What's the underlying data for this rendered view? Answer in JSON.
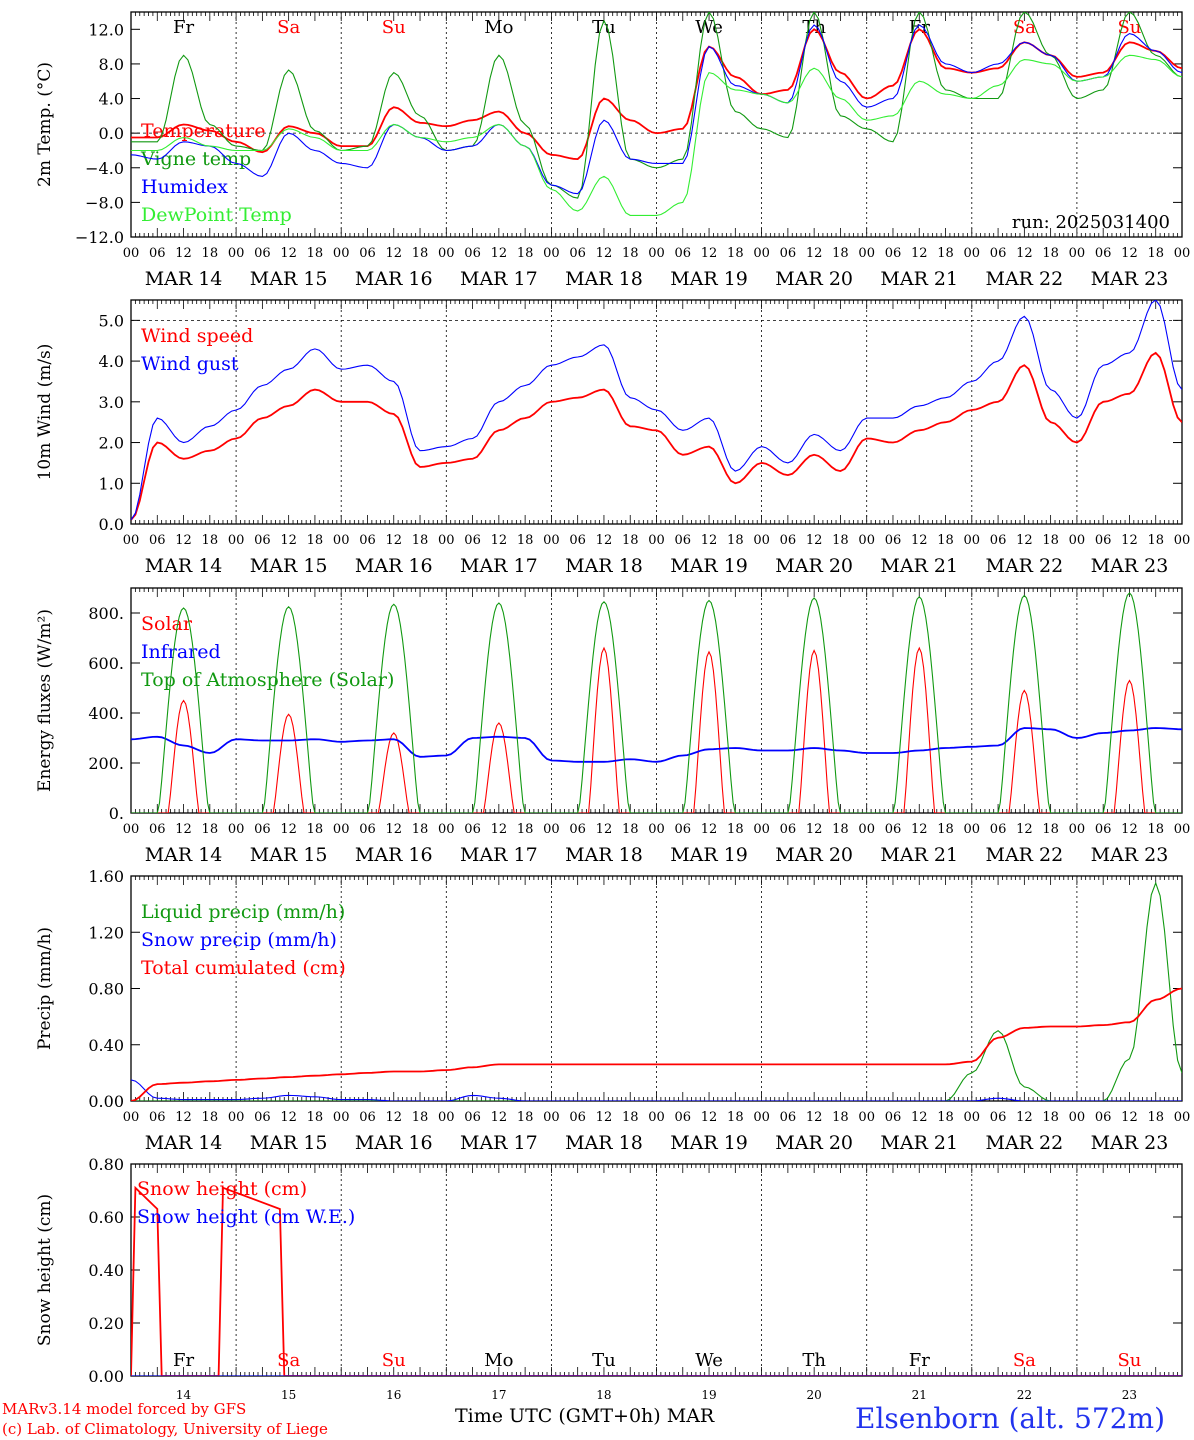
{
  "colors": {
    "red": "#ff0000",
    "blue": "#0000ff",
    "dark_green": "#119911",
    "light_green": "#33ee33",
    "axis": "#000000",
    "weekend_day": "#ff0000",
    "weekday": "#000000"
  },
  "time_axis": {
    "hour_ticks": [
      "00",
      "06",
      "12",
      "18"
    ],
    "end_tick": "00",
    "dates": [
      "MAR 14",
      "MAR 15",
      "MAR 16",
      "MAR 17",
      "MAR 18",
      "MAR 19",
      "MAR 20",
      "MAR 21",
      "MAR 22",
      "MAR 23"
    ],
    "day_names": [
      "Fr",
      "Sa",
      "Su",
      "Mo",
      "Tu",
      "We",
      "Th",
      "Fr",
      "Sa",
      "Su"
    ],
    "day_numbers": [
      "14",
      "15",
      "16",
      "17",
      "18",
      "19",
      "20",
      "21",
      "22",
      "23"
    ],
    "weekend": [
      false,
      true,
      true,
      false,
      false,
      false,
      false,
      false,
      true,
      true
    ]
  },
  "chart_data": [
    {
      "type": "line",
      "ylabel": "2m Temp. (°C)",
      "ylim": [
        -12,
        14
      ],
      "yticks": [
        "12.0",
        "8.0",
        "4.0",
        "0.0",
        "−4.0",
        "−8.0",
        "−12.0"
      ],
      "ytick_values": [
        12,
        8,
        4,
        0,
        -4,
        -8,
        -12
      ],
      "reference_line": 0,
      "annotation": "run: 2025031400",
      "x_hours": [
        0,
        6,
        12,
        18,
        24,
        30,
        36,
        42,
        48,
        54,
        60,
        66,
        72,
        78,
        84,
        90,
        96,
        102,
        108,
        114,
        120,
        126,
        132,
        138,
        144,
        150,
        156,
        162,
        168,
        174,
        180,
        186,
        192,
        198,
        204,
        210,
        216,
        222,
        228,
        234,
        240
      ],
      "series": [
        {
          "name": "Temperature",
          "color_key": "red",
          "values": [
            -0.5,
            -0.5,
            1.0,
            0.3,
            -1.0,
            -2.2,
            0.8,
            0.0,
            -1.5,
            -1.5,
            3.0,
            1.2,
            0.8,
            1.5,
            2.5,
            0.0,
            -2.5,
            -3.0,
            4.0,
            1.5,
            0.0,
            0.5,
            10.0,
            6.5,
            4.5,
            5.0,
            12.0,
            7.0,
            4.0,
            5.5,
            12.0,
            7.5,
            7.0,
            7.5,
            10.5,
            9.0,
            6.5,
            7.0,
            10.5,
            9.5,
            7.5
          ]
        },
        {
          "name": "Vigne temp",
          "color_key": "dark_green",
          "values": [
            -1.0,
            -1.0,
            9.0,
            1.0,
            -1.5,
            -2.0,
            7.3,
            0.3,
            -2.0,
            -1.5,
            7.0,
            2.0,
            -2.0,
            -1.5,
            9.0,
            1.0,
            -6.0,
            -7.5,
            13.0,
            -3.0,
            -4.0,
            -3.0,
            14.0,
            2.5,
            0.5,
            -0.5,
            14.0,
            2.0,
            0.5,
            -1.0,
            14.0,
            5.0,
            4.0,
            4.0,
            14.0,
            9.0,
            4.0,
            5.0,
            14.0,
            9.0,
            6.5
          ]
        },
        {
          "name": "Humidex",
          "color_key": "blue",
          "values": [
            -2.5,
            -3.0,
            -1.0,
            -1.5,
            -3.5,
            -5.0,
            0.0,
            -2.0,
            -3.5,
            -4.0,
            1.0,
            -0.5,
            -2.0,
            -1.5,
            1.0,
            -1.5,
            -6.0,
            -7.0,
            1.5,
            -3.0,
            -3.5,
            -3.5,
            10.0,
            5.5,
            4.5,
            3.5,
            12.5,
            6.0,
            3.0,
            4.0,
            12.5,
            8.0,
            7.0,
            8.0,
            10.5,
            9.0,
            6.0,
            6.5,
            11.5,
            9.5,
            7.0
          ]
        },
        {
          "name": "DewPoint Temp",
          "color_key": "light_green",
          "values": [
            -2.0,
            -2.0,
            -0.5,
            -1.5,
            -2.0,
            -2.0,
            0.5,
            -0.5,
            -2.0,
            -2.0,
            1.0,
            -0.5,
            -1.0,
            -0.5,
            1.0,
            -1.5,
            -6.5,
            -9.0,
            -5.0,
            -9.5,
            -9.5,
            -8.0,
            7.0,
            5.0,
            4.5,
            3.5,
            7.5,
            4.0,
            1.5,
            2.0,
            6.0,
            4.5,
            4.0,
            5.5,
            8.5,
            8.0,
            6.0,
            6.5,
            9.0,
            8.5,
            6.5
          ]
        }
      ]
    },
    {
      "type": "line",
      "ylabel": "10m Wind (m/s)",
      "ylim": [
        0,
        5.5
      ],
      "yticks": [
        "5.0",
        "4.0",
        "3.0",
        "2.0",
        "1.0",
        "0.0"
      ],
      "ytick_values": [
        5,
        4,
        3,
        2,
        1,
        0
      ],
      "reference_line": 5,
      "x_hours": [
        0,
        6,
        12,
        18,
        24,
        30,
        36,
        42,
        48,
        54,
        60,
        66,
        72,
        78,
        84,
        90,
        96,
        102,
        108,
        114,
        120,
        126,
        132,
        138,
        144,
        150,
        156,
        162,
        168,
        174,
        180,
        186,
        192,
        198,
        204,
        210,
        216,
        222,
        228,
        234,
        240
      ],
      "series": [
        {
          "name": "Wind speed",
          "color_key": "red",
          "values": [
            0.1,
            2.0,
            1.6,
            1.8,
            2.1,
            2.6,
            2.9,
            3.3,
            3.0,
            3.0,
            2.7,
            1.4,
            1.5,
            1.6,
            2.3,
            2.6,
            3.0,
            3.1,
            3.3,
            2.4,
            2.3,
            1.7,
            1.9,
            1.0,
            1.5,
            1.2,
            1.7,
            1.3,
            2.1,
            2.0,
            2.3,
            2.5,
            2.8,
            3.0,
            3.9,
            2.5,
            2.0,
            3.0,
            3.2,
            4.2,
            2.5
          ]
        },
        {
          "name": "Wind gust",
          "color_key": "blue",
          "values": [
            0.1,
            2.6,
            2.0,
            2.4,
            2.8,
            3.4,
            3.8,
            4.3,
            3.8,
            3.9,
            3.5,
            1.8,
            1.9,
            2.1,
            3.0,
            3.4,
            3.9,
            4.1,
            4.4,
            3.1,
            2.8,
            2.3,
            2.6,
            1.3,
            1.9,
            1.5,
            2.2,
            1.8,
            2.6,
            2.6,
            2.9,
            3.1,
            3.5,
            4.0,
            5.1,
            3.3,
            2.6,
            3.9,
            4.2,
            5.5,
            3.3
          ]
        }
      ]
    },
    {
      "type": "line",
      "ylabel": "Energy fluxes (W/m²)",
      "ylim": [
        0,
        900
      ],
      "yticks": [
        "800.",
        "600.",
        "400.",
        "200.",
        "0."
      ],
      "ytick_values": [
        800,
        600,
        400,
        200,
        0
      ],
      "x_hours": [
        0,
        6,
        12,
        18,
        24,
        30,
        36,
        42,
        48,
        54,
        60,
        66,
        72,
        78,
        84,
        90,
        96,
        102,
        108,
        114,
        120,
        126,
        132,
        138,
        144,
        150,
        156,
        162,
        168,
        174,
        180,
        186,
        192,
        198,
        204,
        210,
        216,
        222,
        228,
        234,
        240
      ],
      "series": [
        {
          "name": "Solar",
          "color_key": "red",
          "peaks": [
            450,
            395,
            320,
            360,
            660,
            645,
            650,
            660,
            490,
            530
          ]
        },
        {
          "name": "Infrared",
          "color_key": "blue",
          "values": [
            295,
            305,
            270,
            240,
            295,
            290,
            290,
            295,
            285,
            290,
            295,
            225,
            230,
            300,
            305,
            300,
            210,
            205,
            205,
            215,
            205,
            230,
            255,
            260,
            250,
            250,
            260,
            250,
            240,
            240,
            250,
            260,
            265,
            270,
            340,
            335,
            300,
            320,
            330,
            340,
            335
          ]
        },
        {
          "name": "Top of Atmosphere (Solar)",
          "color_key": "dark_green",
          "peaks": [
            820,
            825,
            835,
            840,
            845,
            850,
            860,
            865,
            870,
            880
          ]
        }
      ]
    },
    {
      "type": "line",
      "ylabel": "Precip (mm/h)",
      "ylim": [
        0,
        1.6
      ],
      "yticks": [
        "1.60",
        "1.20",
        "0.80",
        "0.40",
        "0.00"
      ],
      "ytick_values": [
        1.6,
        1.2,
        0.8,
        0.4,
        0.0
      ],
      "x_hours": [
        0,
        6,
        12,
        18,
        24,
        30,
        36,
        42,
        48,
        54,
        60,
        66,
        72,
        78,
        84,
        90,
        96,
        102,
        108,
        114,
        120,
        126,
        132,
        138,
        144,
        150,
        156,
        162,
        168,
        174,
        180,
        186,
        192,
        198,
        204,
        210,
        216,
        222,
        228,
        234,
        240
      ],
      "series": [
        {
          "name": "Liquid precip (mm/h)",
          "color_key": "dark_green",
          "values": [
            0,
            0,
            0,
            0,
            0,
            0,
            0,
            0,
            0,
            0,
            0,
            0,
            0,
            0,
            0,
            0,
            0,
            0,
            0,
            0,
            0,
            0,
            0,
            0,
            0,
            0,
            0,
            0,
            0,
            0,
            0,
            0,
            0.2,
            0.5,
            0.1,
            0,
            0,
            0,
            0.3,
            1.55,
            0.2
          ]
        },
        {
          "name": "Snow precip (mm/h)",
          "color_key": "blue",
          "values": [
            0.15,
            0.02,
            0.01,
            0.01,
            0.01,
            0.02,
            0.04,
            0.03,
            0.01,
            0.01,
            0,
            0,
            0,
            0.04,
            0.02,
            0,
            0,
            0,
            0,
            0,
            0,
            0,
            0,
            0,
            0,
            0,
            0,
            0,
            0,
            0,
            0,
            0,
            0,
            0.02,
            0,
            0,
            0,
            0,
            0,
            0,
            0
          ]
        },
        {
          "name": "Total cumulated (cm)",
          "color_key": "red",
          "values": [
            0,
            0.12,
            0.13,
            0.14,
            0.15,
            0.16,
            0.17,
            0.18,
            0.19,
            0.2,
            0.21,
            0.21,
            0.22,
            0.24,
            0.26,
            0.26,
            0.26,
            0.26,
            0.26,
            0.26,
            0.26,
            0.26,
            0.26,
            0.26,
            0.26,
            0.26,
            0.26,
            0.26,
            0.26,
            0.26,
            0.26,
            0.26,
            0.28,
            0.45,
            0.52,
            0.53,
            0.53,
            0.54,
            0.56,
            0.72,
            0.8
          ]
        }
      ]
    },
    {
      "type": "line",
      "ylabel": "Snow height (cm)",
      "ylim": [
        0,
        0.8
      ],
      "yticks": [
        "0.80",
        "0.60",
        "0.40",
        "0.20",
        "0.00"
      ],
      "ytick_values": [
        0.8,
        0.6,
        0.4,
        0.2,
        0.0
      ],
      "x_hours": [
        0,
        1,
        6,
        7,
        8,
        20,
        21,
        34,
        35,
        240
      ],
      "series": [
        {
          "name": "Snow height (cm)",
          "color_key": "red",
          "values": [
            0,
            0.71,
            0.63,
            0,
            0,
            0,
            0.71,
            0.63,
            0,
            0
          ]
        },
        {
          "name": "Snow height (cm W.E.)",
          "color_key": "blue",
          "values": [
            0,
            0,
            0,
            0,
            0,
            0,
            0,
            0,
            0,
            0
          ]
        }
      ]
    }
  ],
  "footer": {
    "credit_line1": "MARv3.14 model forced by GFS",
    "credit_line2": "(c) Lab. of Climatology, University of Liege",
    "time_label": "Time UTC (GMT+0h)",
    "month_label": "MAR",
    "station": "Elsenborn (alt. 572m)"
  }
}
